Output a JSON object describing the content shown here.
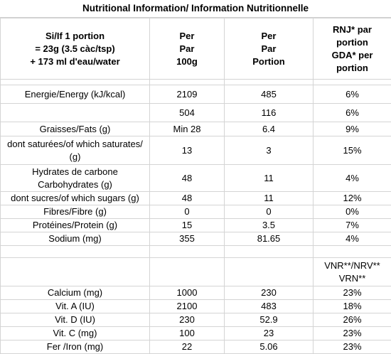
{
  "title": "Nutritional Information/ Information Nutritionnelle",
  "header": {
    "col1": [
      "Si/If 1 portion",
      "= 23g (3.5 càc/tsp)",
      "+ 173 ml d'eau/water"
    ],
    "col2": [
      "Per",
      "Par",
      "100g"
    ],
    "col3": [
      "Per",
      "Par",
      "Portion"
    ],
    "col4": [
      "RNJ* par",
      "portion",
      "GDA* per",
      "portion"
    ]
  },
  "rows": [
    {
      "label": "Energie/Energy (kJ/kcal)",
      "per100": "2109",
      "portion": "485",
      "pct": "6%"
    },
    {
      "label": "",
      "per100": "504",
      "portion": "116",
      "pct": "6%"
    },
    {
      "label": "Graisses/Fats (g)",
      "per100": "Min 28",
      "portion": "6.4",
      "pct": "9%"
    },
    {
      "label": "dont saturées/of which saturates/ (g)",
      "per100": "13",
      "portion": "3",
      "pct": "15%"
    },
    {
      "label": "Hydrates de carbone Carbohydrates (g)",
      "per100": "48",
      "portion": "11",
      "pct": "4%"
    },
    {
      "label": "dont sucres/of which sugars (g)",
      "per100": "48",
      "portion": "11",
      "pct": "12%"
    },
    {
      "label": "Fibres/Fibre (g)",
      "per100": "0",
      "portion": "0",
      "pct": "0%"
    },
    {
      "label": "Protéines/Protein (g)",
      "per100": "15",
      "portion": "3.5",
      "pct": "7%"
    },
    {
      "label": "Sodium (mg)",
      "per100": "355",
      "portion": "81.65",
      "pct": "4%"
    }
  ],
  "vnr_header": [
    "VNR**/NRV**",
    "VRN**"
  ],
  "vitamins": [
    {
      "label": "Calcium (mg)",
      "per100": "1000",
      "portion": "230",
      "pct": "23%"
    },
    {
      "label": "Vit. A (IU)",
      "per100": "2100",
      "portion": "483",
      "pct": "18%"
    },
    {
      "label": "Vit. D (IU)",
      "per100": "230",
      "portion": "52.9",
      "pct": "26%"
    },
    {
      "label": "Vit. C (mg)",
      "per100": "100",
      "portion": "23",
      "pct": "23%"
    },
    {
      "label": "Fer /Iron (mg)",
      "per100": "22",
      "portion": "5.06",
      "pct": "23%"
    }
  ]
}
